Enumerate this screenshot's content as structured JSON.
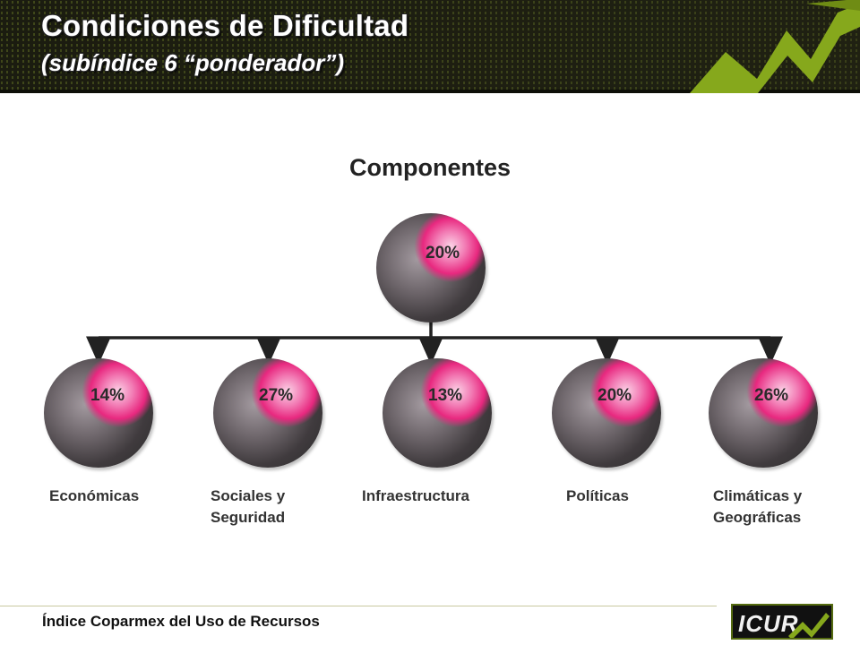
{
  "header": {
    "title": "Condiciones de Dificultad",
    "subtitle": "(subíndice 6 “ponderador”)"
  },
  "diagram": {
    "heading": "Componentes",
    "root": {
      "percent": "20%"
    },
    "children": [
      {
        "percent": "14%",
        "label_lines": [
          "Económicas"
        ]
      },
      {
        "percent": "27%",
        "label_lines": [
          "Sociales y",
          "Seguridad"
        ]
      },
      {
        "percent": "13%",
        "label_lines": [
          "Infraestructura"
        ]
      },
      {
        "percent": "20%",
        "label_lines": [
          "Políticas"
        ]
      },
      {
        "percent": "26%",
        "label_lines": [
          "Climáticas y",
          "Geográficas"
        ]
      }
    ]
  },
  "footer": {
    "text": "Índice Coparmex del Uso de Recursos",
    "logo_text": "ICUR"
  },
  "colors": {
    "accent_pink": "#e8287f",
    "sphere_dark": "#2b2b2b",
    "banner_green": "#86a81c"
  }
}
